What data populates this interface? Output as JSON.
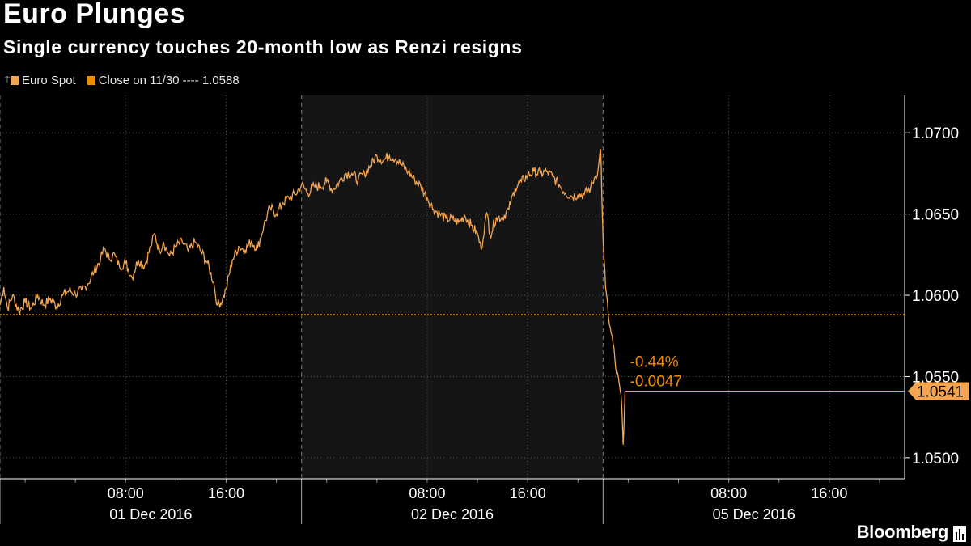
{
  "title": "Euro Plunges",
  "subtitle": "Single currency touches 20-month low as Renzi resigns",
  "legend": [
    {
      "label": "Euro Spot",
      "color": "#f5a550"
    },
    {
      "label": "Close on 11/30 ---- 1.0588",
      "color": "#f08c00"
    }
  ],
  "brand": "Bloomberg",
  "colors": {
    "series": "#f5a550",
    "reference": "#f08c00",
    "shade": "#151515",
    "grid": "#555555"
  },
  "chart_data": {
    "type": "line",
    "title": "Euro Plunges",
    "subtitle": "Single currency touches 20-month low as Renzi resigns",
    "y_axis_position": "right",
    "ylim": [
      1.0487,
      1.0723
    ],
    "yticks": [
      "1.0500",
      "1.0550",
      "1.0600",
      "1.0650",
      "1.0700"
    ],
    "x_unit": "hours since 30 Nov 2016 22:00 (trading-session axis, weekend omitted)",
    "xlim": [
      0,
      72
    ],
    "xticks": [
      {
        "x": 10,
        "label": "08:00"
      },
      {
        "x": 18,
        "label": "16:00"
      },
      {
        "x": 34,
        "label": "08:00"
      },
      {
        "x": 42,
        "label": "16:00"
      },
      {
        "x": 58,
        "label": "08:00"
      },
      {
        "x": 66,
        "label": "16:00"
      }
    ],
    "day_labels": [
      {
        "x": 12,
        "label": "01 Dec 2016"
      },
      {
        "x": 36,
        "label": "02 Dec 2016"
      },
      {
        "x": 60,
        "label": "05 Dec 2016"
      }
    ],
    "day_separators": [
      24,
      48
    ],
    "shaded_range": [
      24,
      48
    ],
    "reference_line": {
      "value": 1.0588,
      "label": "Close on 11/30 ---- 1.0588"
    },
    "last_value": {
      "value": 1.0541,
      "label": "1.0541"
    },
    "annotations": [
      "-0.44%",
      "-0.0047"
    ],
    "series": [
      {
        "name": "Euro Spot",
        "points": [
          [
            0,
            1.0594
          ],
          [
            0.3,
            1.0605
          ],
          [
            0.6,
            1.0592
          ],
          [
            1,
            1.06
          ],
          [
            1.5,
            1.059
          ],
          [
            2,
            1.0596
          ],
          [
            2.5,
            1.0592
          ],
          [
            3,
            1.06
          ],
          [
            3.5,
            1.0594
          ],
          [
            4,
            1.0598
          ],
          [
            4.5,
            1.0593
          ],
          [
            5,
            1.06
          ],
          [
            5.5,
            1.0603
          ],
          [
            6,
            1.0601
          ],
          [
            6.5,
            1.0603
          ],
          [
            7,
            1.0607
          ],
          [
            7.5,
            1.0615
          ],
          [
            8,
            1.0622
          ],
          [
            8.3,
            1.0629
          ],
          [
            8.7,
            1.0622
          ],
          [
            9,
            1.0626
          ],
          [
            9.5,
            1.0618
          ],
          [
            10,
            1.062
          ],
          [
            10.5,
            1.0611
          ],
          [
            11,
            1.0622
          ],
          [
            11.5,
            1.0618
          ],
          [
            12,
            1.063
          ],
          [
            12.3,
            1.0638
          ],
          [
            12.7,
            1.0627
          ],
          [
            13,
            1.0633
          ],
          [
            13.5,
            1.0624
          ],
          [
            14,
            1.063
          ],
          [
            14.5,
            1.0633
          ],
          [
            15,
            1.0627
          ],
          [
            15.5,
            1.0633
          ],
          [
            16,
            1.0627
          ],
          [
            16.5,
            1.062
          ],
          [
            17,
            1.0608
          ],
          [
            17.3,
            1.0594
          ],
          [
            17.7,
            1.0597
          ],
          [
            18,
            1.0604
          ],
          [
            18.5,
            1.0622
          ],
          [
            19,
            1.063
          ],
          [
            19.5,
            1.0628
          ],
          [
            20,
            1.0633
          ],
          [
            20.5,
            1.0629
          ],
          [
            21,
            1.0643
          ],
          [
            21.5,
            1.0654
          ],
          [
            22,
            1.065
          ],
          [
            22.5,
            1.0657
          ],
          [
            23,
            1.066
          ],
          [
            23.5,
            1.0662
          ],
          [
            24,
            1.0668
          ],
          [
            24.5,
            1.0663
          ],
          [
            25,
            1.0667
          ],
          [
            25.5,
            1.0667
          ],
          [
            26,
            1.067
          ],
          [
            26.5,
            1.0665
          ],
          [
            27,
            1.067
          ],
          [
            27.5,
            1.0675
          ],
          [
            28,
            1.0675
          ],
          [
            28.5,
            1.0671
          ],
          [
            29,
            1.0675
          ],
          [
            29.5,
            1.068
          ],
          [
            30,
            1.0686
          ],
          [
            30.5,
            1.0683
          ],
          [
            31,
            1.0686
          ],
          [
            31.5,
            1.0684
          ],
          [
            32,
            1.068
          ],
          [
            32.5,
            1.0676
          ],
          [
            33,
            1.0671
          ],
          [
            33.5,
            1.0667
          ],
          [
            34,
            1.066
          ],
          [
            34.5,
            1.0653
          ],
          [
            35,
            1.065
          ],
          [
            35.5,
            1.0647
          ],
          [
            36,
            1.0647
          ],
          [
            36.5,
            1.0645
          ],
          [
            37,
            1.0649
          ],
          [
            37.5,
            1.0643
          ],
          [
            38,
            1.0638
          ],
          [
            38.3,
            1.0628
          ],
          [
            38.6,
            1.0645
          ],
          [
            38.8,
            1.065
          ],
          [
            39,
            1.0637
          ],
          [
            39.5,
            1.0648
          ],
          [
            40,
            1.0648
          ],
          [
            40.5,
            1.0653
          ],
          [
            41,
            1.0666
          ],
          [
            41.5,
            1.067
          ],
          [
            42,
            1.0674
          ],
          [
            42.5,
            1.0676
          ],
          [
            43,
            1.0675
          ],
          [
            43.5,
            1.0676
          ],
          [
            44,
            1.0673
          ],
          [
            44.5,
            1.0668
          ],
          [
            45,
            1.0663
          ],
          [
            45.5,
            1.0661
          ],
          [
            46,
            1.0662
          ],
          [
            46.5,
            1.0662
          ],
          [
            47,
            1.0666
          ],
          [
            47.3,
            1.0672
          ],
          [
            47.6,
            1.0677
          ],
          [
            47.8,
            1.069
          ],
          [
            47.85,
            1.068
          ],
          [
            47.9,
            1.066
          ],
          [
            48,
            1.0635
          ],
          [
            48.2,
            1.0605
          ],
          [
            48.5,
            1.0582
          ],
          [
            48.8,
            1.057
          ],
          [
            49,
            1.0555
          ],
          [
            49.3,
            1.0545
          ],
          [
            49.5,
            1.053
          ],
          [
            49.6,
            1.0508
          ],
          [
            49.75,
            1.0541
          ]
        ]
      }
    ]
  }
}
